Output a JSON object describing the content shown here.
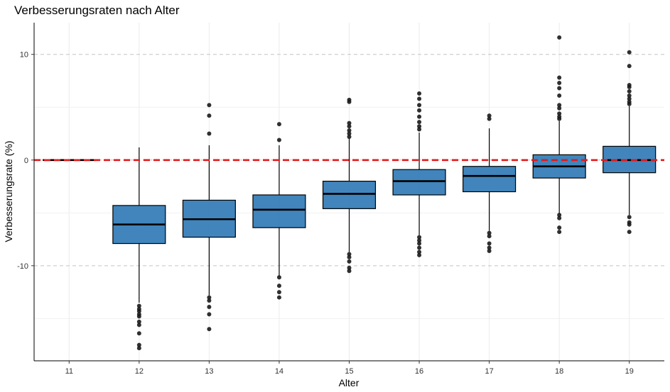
{
  "chart_data": {
    "type": "boxplot",
    "title": "Verbesserungsraten nach Alter",
    "xlabel": "Alter",
    "ylabel": "Verbesserungsrate (%)",
    "categories": [
      "11",
      "12",
      "13",
      "14",
      "15",
      "16",
      "17",
      "18",
      "19"
    ],
    "ylim": [
      -19,
      13
    ],
    "yticks": [
      -10,
      0,
      10
    ],
    "grid": true,
    "reference_line": {
      "y": 0,
      "style": "dashed",
      "color": "#e41a1c"
    },
    "box_color": "#377eb8",
    "boxes": [
      {
        "x": "11",
        "whisker_low": 0,
        "q1": 0,
        "median": 0,
        "q3": 0,
        "whisker_high": 0,
        "outliers": []
      },
      {
        "x": "12",
        "whisker_low": -13.5,
        "q1": -7.9,
        "median": -6.1,
        "q3": -4.3,
        "whisker_high": 1.2,
        "outliers": [
          -13.8,
          -14.1,
          -14.3,
          -14.6,
          -14.8,
          -15.3,
          -15.6,
          -16.4,
          -17.5,
          -17.8
        ]
      },
      {
        "x": "13",
        "whisker_low": -12.8,
        "q1": -7.3,
        "median": -5.6,
        "q3": -3.8,
        "whisker_high": 1.4,
        "outliers": [
          2.5,
          4.2,
          5.2,
          -13.0,
          -13.3,
          -13.9,
          -14.6,
          -16.0
        ]
      },
      {
        "x": "14",
        "whisker_low": -11.0,
        "q1": -6.4,
        "median": -4.7,
        "q3": -3.3,
        "whisker_high": 1.4,
        "outliers": [
          1.9,
          3.4,
          -11.1,
          -11.9,
          -12.5,
          -13.0
        ]
      },
      {
        "x": "15",
        "whisker_low": -8.7,
        "q1": -4.6,
        "median": -3.2,
        "q3": -2.0,
        "whisker_high": 2.1,
        "outliers": [
          2.2,
          2.5,
          2.8,
          3.2,
          3.5,
          5.5,
          5.7,
          -8.9,
          -9.2,
          -9.6,
          -10.2,
          -10.5
        ]
      },
      {
        "x": "16",
        "whisker_low": -7.1,
        "q1": -3.3,
        "median": -2.0,
        "q3": -0.9,
        "whisker_high": 2.6,
        "outliers": [
          2.9,
          3.2,
          3.6,
          4.1,
          4.7,
          5.2,
          5.8,
          6.3,
          -7.3,
          -7.6,
          -7.9,
          -8.3,
          -8.7,
          -9.0
        ]
      },
      {
        "x": "17",
        "whisker_low": -6.7,
        "q1": -3.0,
        "median": -1.5,
        "q3": -0.6,
        "whisker_high": 3.0,
        "outliers": [
          3.9,
          4.2,
          -6.9,
          -7.2,
          -7.9,
          -8.3,
          -8.6
        ]
      },
      {
        "x": "18",
        "whisker_low": -5.1,
        "q1": -1.7,
        "median": -0.6,
        "q3": 0.5,
        "whisker_high": 3.7,
        "outliers": [
          3.9,
          4.1,
          4.4,
          4.9,
          5.2,
          6.1,
          6.8,
          7.3,
          7.8,
          11.6,
          -5.2,
          -5.5,
          -6.4,
          -6.8
        ]
      },
      {
        "x": "19",
        "whisker_low": -5.2,
        "q1": -1.2,
        "median": 0.0,
        "q3": 1.3,
        "whisker_high": 5.1,
        "outliers": [
          5.3,
          5.5,
          5.8,
          6.1,
          6.5,
          6.9,
          7.1,
          8.9,
          10.2,
          -5.4,
          -5.9,
          -6.1,
          -6.8
        ]
      }
    ]
  }
}
